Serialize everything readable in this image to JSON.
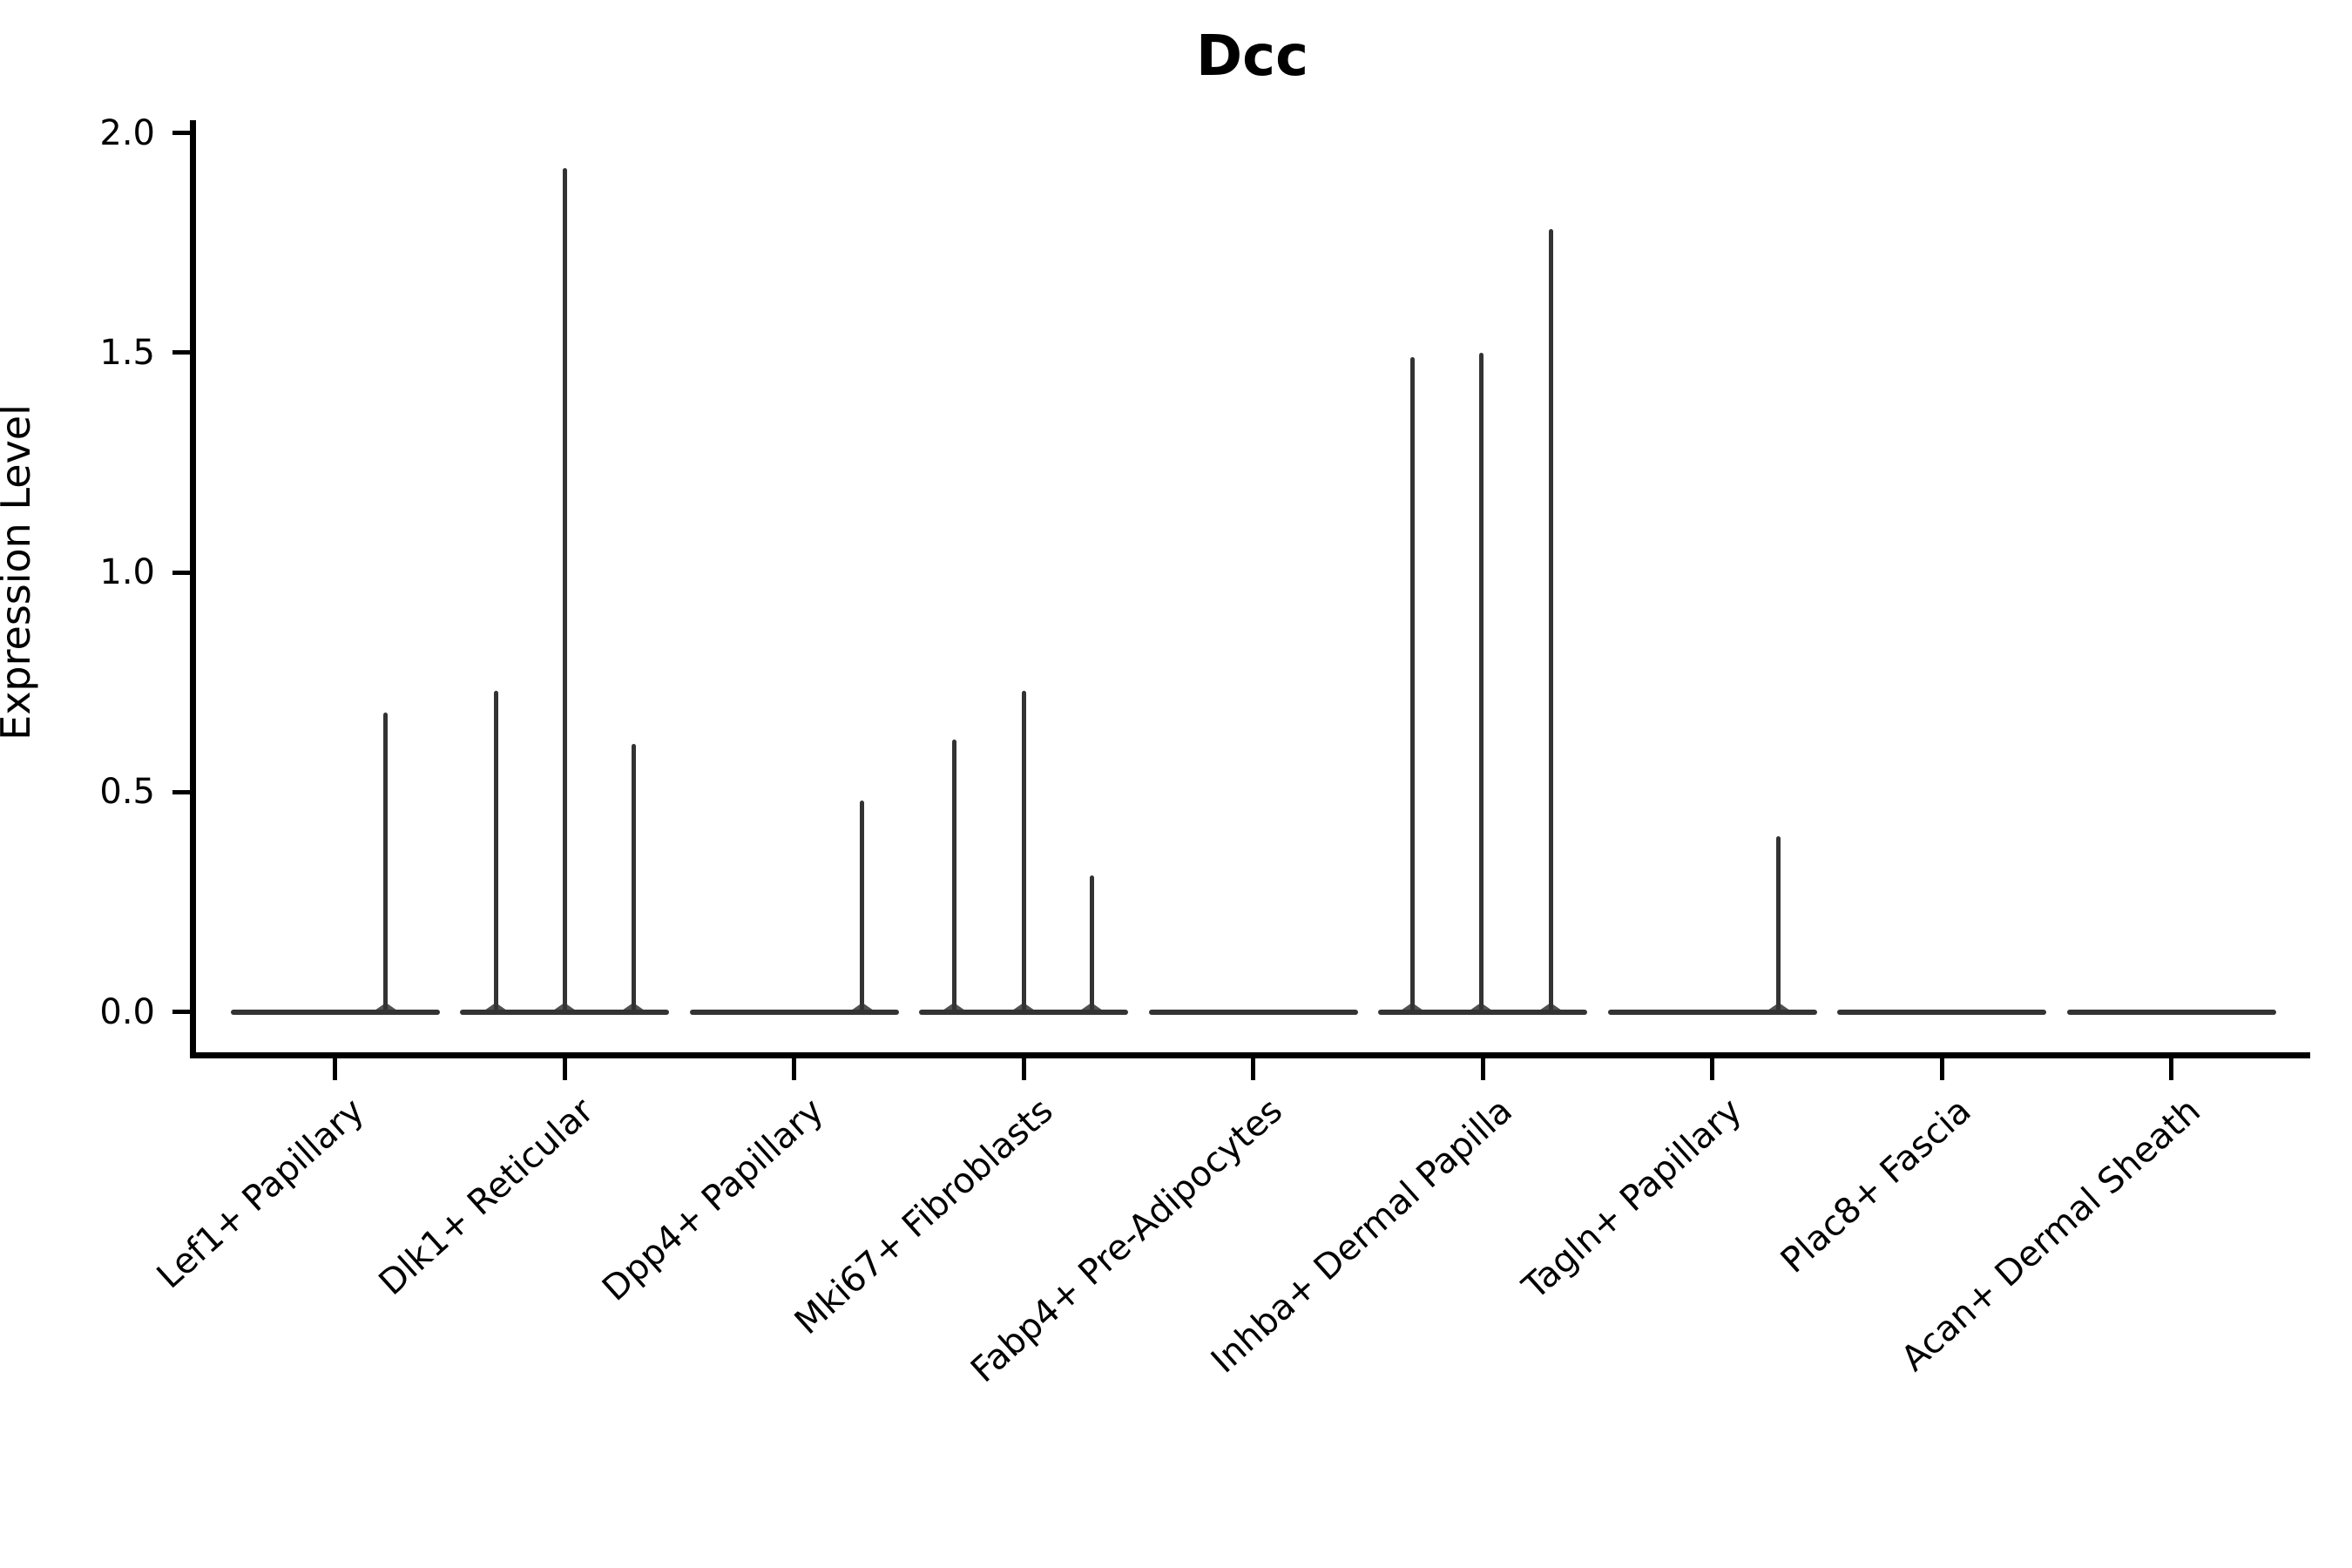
{
  "title": "Dcc",
  "axes": {
    "ylabel": "Expression Level",
    "ytick_labels": [
      "0.0",
      "0.5",
      "1.0",
      "1.5",
      "2.0"
    ]
  },
  "chart_data": {
    "type": "violin",
    "title": "Dcc",
    "xlabel": "",
    "ylabel": "Expression Level",
    "ylim": [
      0.0,
      2.0
    ],
    "yticks": [
      0.0,
      0.5,
      1.0,
      1.5,
      2.0
    ],
    "grid": false,
    "legend": false,
    "categories": [
      "Lef1+ Papillary",
      "Dlk1+ Reticular",
      "Dpp4+ Papillary",
      "Mki67+ Fibroblasts",
      "Fabp4+ Pre-Adipocytes",
      "Inhba+ Dermal Papilla",
      "Tagln+ Papillary",
      "Plac8+ Fascia",
      "Acan+ Dermal Sheath"
    ],
    "series": [
      {
        "category": "Lef1+ Papillary",
        "baseline_value": 0.0,
        "spikes": [
          {
            "dx": 58,
            "value": 0.68
          }
        ]
      },
      {
        "category": "Dlk1+ Reticular",
        "baseline_value": 0.0,
        "spikes": [
          {
            "dx": -79,
            "value": 0.73
          },
          {
            "dx": 0,
            "value": 1.92
          },
          {
            "dx": 79,
            "value": 0.61
          }
        ]
      },
      {
        "category": "Dpp4+ Papillary",
        "baseline_value": 0.0,
        "spikes": [
          {
            "dx": 78,
            "value": 0.48
          }
        ]
      },
      {
        "category": "Mki67+ Fibroblasts",
        "baseline_value": 0.0,
        "spikes": [
          {
            "dx": -80,
            "value": 0.62
          },
          {
            "dx": 0,
            "value": 0.73
          },
          {
            "dx": 78,
            "value": 0.31
          }
        ]
      },
      {
        "category": "Fabp4+ Pre-Adipocytes",
        "baseline_value": 0.0,
        "spikes": []
      },
      {
        "category": "Inhba+ Dermal Papilla",
        "baseline_value": 0.0,
        "spikes": [
          {
            "dx": -81,
            "value": 1.49
          },
          {
            "dx": -2,
            "value": 1.5
          },
          {
            "dx": 78,
            "value": 1.78
          }
        ]
      },
      {
        "category": "Tagln+ Papillary",
        "baseline_value": 0.0,
        "spikes": [
          {
            "dx": 76,
            "value": 0.4
          }
        ]
      },
      {
        "category": "Plac8+ Fascia",
        "baseline_value": 0.0,
        "spikes": []
      },
      {
        "category": "Acan+ Dermal Sheath",
        "baseline_value": 0.0,
        "spikes": []
      }
    ],
    "colors": {
      "violin": "#333333",
      "spine": "#000000",
      "text": "#000000"
    }
  }
}
